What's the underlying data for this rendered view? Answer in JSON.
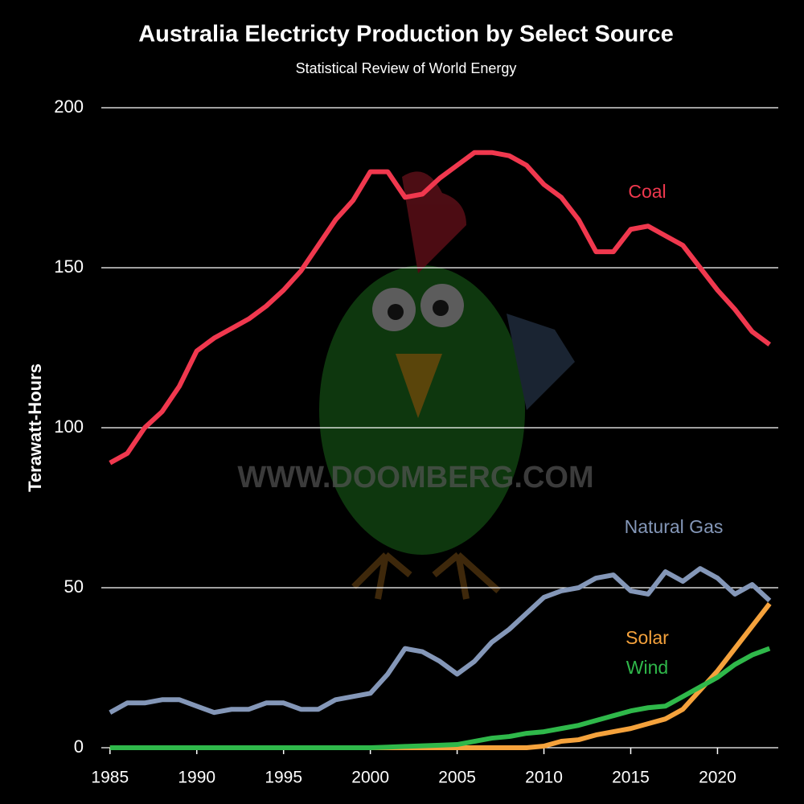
{
  "chart_data": {
    "type": "line",
    "title": "Australia Electricty Production by Select Source",
    "subtitle": "Statistical Review of World Energy",
    "y_label": "Terawatt-Hours",
    "watermark": "WWW.DOOMBERG.COM",
    "x": [
      1985,
      1986,
      1987,
      1988,
      1989,
      1990,
      1991,
      1992,
      1993,
      1994,
      1995,
      1996,
      1997,
      1998,
      1999,
      2000,
      2001,
      2002,
      2003,
      2004,
      2005,
      2006,
      2007,
      2008,
      2009,
      2010,
      2011,
      2012,
      2013,
      2014,
      2015,
      2016,
      2017,
      2018,
      2019,
      2020,
      2021,
      2022,
      2023
    ],
    "series": [
      {
        "name": "Coal",
        "color": "#f0384e",
        "values": [
          89,
          92,
          100,
          105,
          113,
          124,
          128,
          131,
          134,
          138,
          143,
          149,
          157,
          165,
          171,
          180,
          180,
          172,
          173,
          178,
          182,
          186,
          186,
          185,
          182,
          176,
          172,
          165,
          155,
          155,
          162,
          163,
          160,
          157,
          150,
          143,
          137,
          130,
          126
        ]
      },
      {
        "name": "Natural Gas",
        "color": "#8497b8",
        "values": [
          11,
          14,
          14,
          15,
          15,
          13,
          11,
          12,
          12,
          14,
          14,
          12,
          12,
          15,
          16,
          17,
          23,
          31,
          30,
          27,
          23,
          27,
          33,
          37,
          42,
          47,
          49,
          50,
          53,
          54,
          49,
          48,
          55,
          52,
          56,
          53,
          48,
          51,
          46
        ]
      },
      {
        "name": "Solar",
        "color": "#f5a23c",
        "values": [
          0,
          0,
          0,
          0,
          0,
          0,
          0,
          0,
          0,
          0,
          0,
          0,
          0,
          0,
          0,
          0,
          0,
          0,
          0,
          0,
          0,
          0,
          0,
          0,
          0,
          0.5,
          2,
          2.5,
          4,
          5,
          6,
          7.5,
          9,
          12,
          18,
          24,
          31,
          38,
          45
        ]
      },
      {
        "name": "Wind",
        "color": "#2fb84a",
        "values": [
          0,
          0,
          0,
          0,
          0,
          0,
          0,
          0,
          0,
          0,
          0,
          0,
          0,
          0,
          0,
          0,
          0.2,
          0.4,
          0.6,
          0.8,
          1,
          2,
          3,
          3.5,
          4.5,
          5,
          6,
          7,
          8.5,
          10,
          11.5,
          12.5,
          13,
          16,
          19,
          22,
          26,
          29,
          31
        ]
      }
    ],
    "xlim": [
      1984.5,
      2023.5
    ],
    "xticks": [
      1985,
      1990,
      1995,
      2000,
      2005,
      2010,
      2015,
      2020
    ],
    "ylim": [
      0,
      200
    ],
    "yticks": [
      0,
      50,
      100,
      150,
      200
    ],
    "grid": true
  }
}
